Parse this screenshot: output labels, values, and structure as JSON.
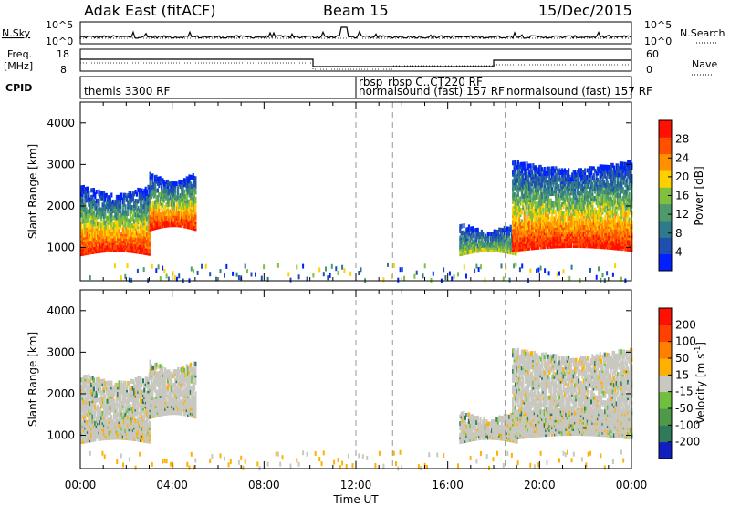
{
  "header": {
    "station": "Adak East (fitACF)",
    "beam": "Beam 15",
    "date": "15/Dec/2015"
  },
  "panels": {
    "nsky": {
      "label": "N.Sky",
      "ticks": [
        "10^5",
        "10^0"
      ],
      "right_label": "N.Search",
      "right_ticks": [
        "10^5",
        "10^0"
      ]
    },
    "freq": {
      "label_line1": "Freq.",
      "label_line2": "[MHz]",
      "ticks": [
        "18",
        "8"
      ],
      "right_label": "Nave",
      "right_ticks": [
        "60",
        "0"
      ]
    },
    "cpid": {
      "label": "CPID",
      "entries": [
        {
          "text": "themis 3300 RF",
          "start_hour": 0
        },
        {
          "text": "rbsp",
          "start_hour": 12
        },
        {
          "text": "rbsp C..CT220 RF",
          "start_hour": 13.6
        },
        {
          "text": "normalsound (fast) 157 RF",
          "start_hour": 12
        },
        {
          "text": "normalsound (fast) 157 RF",
          "start_hour": 18.5
        }
      ]
    }
  },
  "chart_data": [
    {
      "type": "heatmap",
      "quantity": "power",
      "ylabel": "Slant Range [km]",
      "ylim": [
        200,
        4500
      ],
      "xlim": [
        0,
        24
      ],
      "yticks": [
        "1000",
        "2000",
        "3000",
        "4000"
      ],
      "colorbar": {
        "label": "Power [dB]",
        "ticks": [
          "4",
          "8",
          "12",
          "16",
          "20",
          "24",
          "28"
        ],
        "colors": [
          "#0020ff",
          "#1f4fb0",
          "#2f7a8a",
          "#4f9a6a",
          "#7fc040",
          "#ffd000",
          "#ff9000",
          "#ff5000",
          "#ff1000"
        ]
      },
      "regions": [
        {
          "t": [
            0.0,
            3.0
          ],
          "range_km": [
            900,
            2600
          ],
          "level": "strong"
        },
        {
          "t": [
            3.0,
            5.0
          ],
          "range_km": [
            1500,
            2900
          ],
          "level": "strong"
        },
        {
          "t": [
            16.5,
            19.0
          ],
          "range_km": [
            900,
            1700
          ],
          "level": "weak"
        },
        {
          "t": [
            18.8,
            24.0
          ],
          "range_km": [
            1000,
            3200
          ],
          "level": "strong"
        }
      ]
    },
    {
      "type": "heatmap",
      "quantity": "velocity",
      "ylabel": "Slant Range [km]",
      "xlabel": "Time UT",
      "ylim": [
        200,
        4500
      ],
      "xlim": [
        0,
        24
      ],
      "yticks": [
        "1000",
        "2000",
        "3000",
        "4000"
      ],
      "xticks": [
        "00:00",
        "04:00",
        "08:00",
        "12:00",
        "16:00",
        "20:00",
        "00:00"
      ],
      "colorbar": {
        "label": "Velocity [m s",
        "label_sup": "-1",
        "label_end": "]",
        "ticks": [
          "200",
          "100",
          "50",
          "15",
          "-15",
          "-50",
          "-100",
          "-200"
        ],
        "colors": [
          "#1020c0",
          "#2f7a5a",
          "#4f9a4a",
          "#70c040",
          "#c8c8c0",
          "#ffb000",
          "#ff8000",
          "#ff4000",
          "#ff1000"
        ]
      },
      "regions": [
        {
          "t": [
            0.0,
            3.0
          ],
          "range_km": [
            900,
            2600
          ],
          "level": "ground"
        },
        {
          "t": [
            3.0,
            5.0
          ],
          "range_km": [
            1500,
            2900
          ],
          "level": "ground"
        },
        {
          "t": [
            16.5,
            19.0
          ],
          "range_km": [
            900,
            1700
          ],
          "level": "ground"
        },
        {
          "t": [
            18.8,
            24.0
          ],
          "range_km": [
            1000,
            3200
          ],
          "level": "ground"
        }
      ]
    }
  ]
}
